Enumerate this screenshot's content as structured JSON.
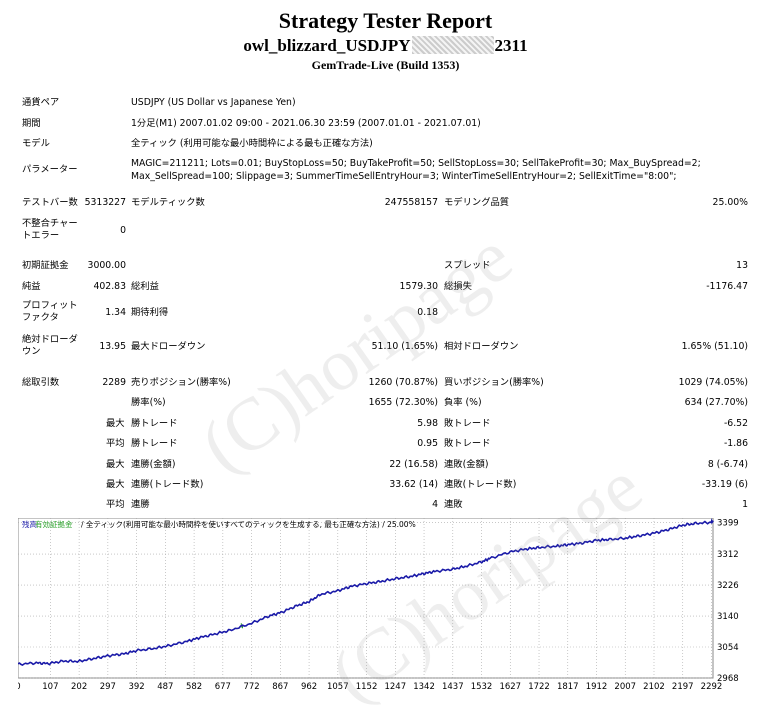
{
  "header": {
    "title": "Strategy Tester Report",
    "subtitle_left": "owl_blizzard_USDJPY",
    "subtitle_right": "2311",
    "build": "GemTrade-Live (Build 1353)"
  },
  "info": {
    "pair_label": "通貨ペア",
    "pair_value": "USDJPY (US Dollar vs Japanese Yen)",
    "period_label": "期間",
    "period_value": "1分足(M1) 2007.01.02 09:00 - 2021.06.30 23:59 (2007.01.01 - 2021.07.01)",
    "model_label": "モデル",
    "model_value": "全ティック (利用可能な最小時間枠による最も正確な方法)",
    "params_label": "パラメーター",
    "params_line1": "MAGIC=211211; Lots=0.01; BuyStopLoss=50; BuyTakeProfit=50; SellStopLoss=30; SellTakeProfit=30; Max_BuySpread=2;",
    "params_line2": "Max_SellSpread=100; Slippage=3; SummerTimeSellEntryHour=3; WinterTimeSellEntryHour=2; SellExitTime=\"8:00\";"
  },
  "stats": {
    "bars_label": "テストバー数",
    "bars_value": "5313227",
    "ticks_label": "モデルティック数",
    "ticks_value": "247558157",
    "quality_label": "モデリング品質",
    "quality_value": "25.00%",
    "mismatch_label": "不整合チャートエラー",
    "mismatch_value": "0",
    "deposit_label": "初期証拠金",
    "deposit_value": "3000.00",
    "spread_label": "スプレッド",
    "spread_value": "13",
    "net_label": "純益",
    "net_value": "402.83",
    "gross_profit_label": "総利益",
    "gross_profit_value": "1579.30",
    "gross_loss_label": "総損失",
    "gross_loss_value": "-1176.47",
    "pf_label": "プロフィットファクタ",
    "pf_value": "1.34",
    "expected_label": "期待利得",
    "expected_value": "0.18",
    "abs_dd_label": "絶対ドローダウン",
    "abs_dd_value": "13.95",
    "max_dd_label": "最大ドローダウン",
    "max_dd_value": "51.10 (1.65%)",
    "rel_dd_label": "相対ドローダウン",
    "rel_dd_value": "1.65% (51.10)",
    "trades_label": "総取引数",
    "trades_value": "2289",
    "short_label": "売りポジション(勝率%)",
    "short_value": "1260 (70.87%)",
    "long_label": "買いポジション(勝率%)",
    "long_value": "1029 (74.05%)",
    "winrate_label": "勝率(%)",
    "winrate_value": "1655 (72.30%)",
    "lossrate_label": "負率 (%)",
    "lossrate_value": "634 (27.70%)",
    "max_label": "最大",
    "avg_label": "平均",
    "largest_win_label": "勝トレード",
    "largest_win_value": "5.98",
    "largest_loss_label": "敗トレード",
    "largest_loss_value": "-6.52",
    "avg_win_label": "勝トレード",
    "avg_win_value": "0.95",
    "avg_loss_label": "敗トレード",
    "avg_loss_value": "-1.86",
    "cons_wins_amt_label": "連勝(金額)",
    "cons_wins_amt_value": "22 (16.58)",
    "cons_loss_amt_label": "連敗(金額)",
    "cons_loss_amt_value": "8 (-6.74)",
    "cons_profit_label": "連勝(トレード数)",
    "cons_profit_value": "33.62 (14)",
    "cons_loss_label": "連敗(トレード数)",
    "cons_loss_value": "-33.19 (6)",
    "avg_cons_win_label": "連勝",
    "avg_cons_win_value": "4",
    "avg_cons_loss_label": "連敗",
    "avg_cons_loss_value": "1"
  },
  "watermark": "(C)horipage",
  "chart_legend": {
    "balance": "残高",
    "equity": "有効証拠金",
    "rest": "/ 全ティック(利用可能な最小時間枠を使いすべてのティックを生成する, 最も正確な方法) / 25.00%"
  },
  "colors": {
    "balance_line": "#1a1aa8",
    "grid": "#a8a8a8",
    "volume": "#28a028"
  },
  "chart_data": {
    "type": "line",
    "x_ticks": [
      "0",
      "107",
      "202",
      "297",
      "392",
      "487",
      "582",
      "677",
      "772",
      "867",
      "962",
      "1057",
      "1152",
      "1247",
      "1342",
      "1437",
      "1532",
      "1627",
      "1722",
      "1817",
      "1912",
      "2007",
      "2102",
      "2197",
      "2292"
    ],
    "y_ticks": [
      "2968",
      "3054",
      "3140",
      "3226",
      "3312",
      "3399"
    ],
    "xlim": [
      0,
      2297
    ],
    "ylim": [
      2968,
      3412
    ],
    "series": [
      {
        "name": "残高",
        "x": [
          0,
          60,
          100,
          150,
          200,
          250,
          300,
          350,
          392,
          450,
          500,
          560,
          600,
          650,
          700,
          772,
          830,
          870,
          920,
          962,
          1000,
          1057,
          1100,
          1152,
          1200,
          1250,
          1300,
          1342,
          1380,
          1437,
          1480,
          1532,
          1560,
          1627,
          1680,
          1722,
          1780,
          1817,
          1860,
          1912,
          1950,
          2007,
          2050,
          2102,
          2150,
          2197,
          2240,
          2292,
          2297
        ],
        "y": [
          3006,
          3010,
          3008,
          3015,
          3014,
          3022,
          3030,
          3035,
          3044,
          3050,
          3058,
          3070,
          3080,
          3090,
          3100,
          3120,
          3140,
          3150,
          3168,
          3180,
          3200,
          3210,
          3222,
          3230,
          3236,
          3244,
          3250,
          3258,
          3264,
          3270,
          3278,
          3290,
          3300,
          3318,
          3326,
          3330,
          3334,
          3338,
          3342,
          3350,
          3352,
          3356,
          3362,
          3370,
          3380,
          3392,
          3397,
          3400,
          3403
        ]
      }
    ]
  }
}
